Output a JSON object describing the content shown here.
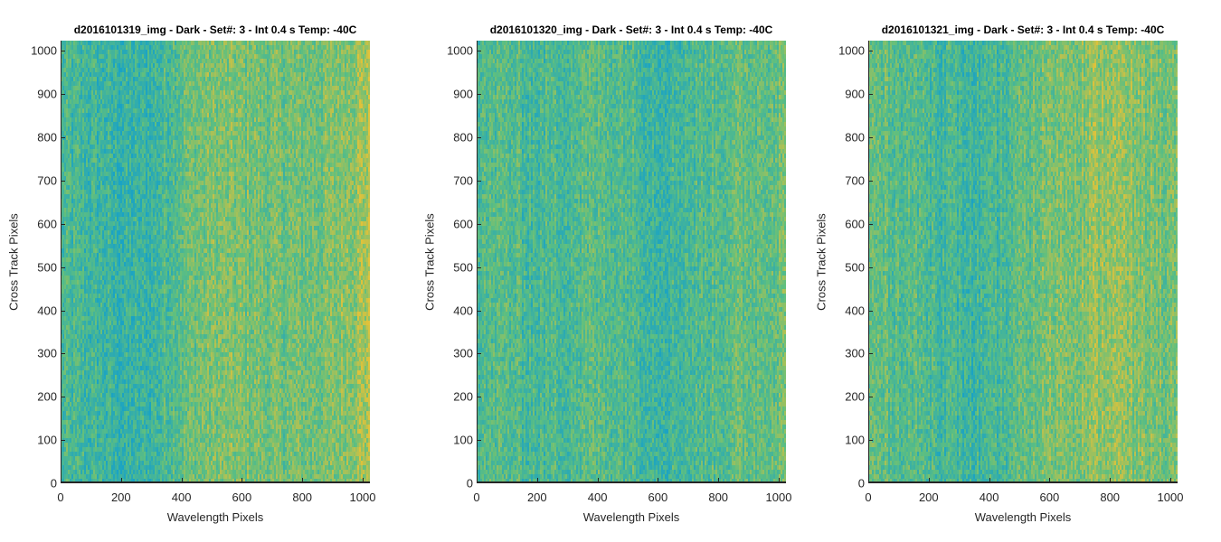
{
  "colors": {
    "low": "#1aa3c4",
    "mid": "#5fbf7f",
    "high": "#e0c23a",
    "axis": "#262626"
  },
  "chart_data": [
    {
      "type": "heatmap",
      "title": "d2016101319_img - Dark - Set#: 3 - Int 0.4 s Temp: -40C",
      "xlabel": "Wavelength Pixels",
      "ylabel": "Cross Track Pixels",
      "xlim": [
        0,
        1024
      ],
      "ylim": [
        0,
        1024
      ],
      "xticks": [
        "0",
        "200",
        "400",
        "600",
        "800",
        "1000"
      ],
      "yticks": [
        "0",
        "100",
        "200",
        "300",
        "400",
        "500",
        "600",
        "700",
        "800",
        "900",
        "1000"
      ],
      "column_profile": [
        {
          "x": 0,
          "level": 0.35
        },
        {
          "x": 100,
          "level": 0.3
        },
        {
          "x": 200,
          "level": 0.22
        },
        {
          "x": 300,
          "level": 0.25
        },
        {
          "x": 400,
          "level": 0.5
        },
        {
          "x": 500,
          "level": 0.6
        },
        {
          "x": 600,
          "level": 0.6
        },
        {
          "x": 700,
          "level": 0.55
        },
        {
          "x": 800,
          "level": 0.55
        },
        {
          "x": 900,
          "level": 0.6
        },
        {
          "x": 1024,
          "level": 0.8
        }
      ]
    },
    {
      "type": "heatmap",
      "title": "d2016101320_img - Dark - Set#: 3 - Int 0.4 s Temp: -40C",
      "xlabel": "Wavelength Pixels",
      "ylabel": "Cross Track Pixels",
      "xlim": [
        0,
        1024
      ],
      "ylim": [
        0,
        1024
      ],
      "xticks": [
        "0",
        "200",
        "400",
        "600",
        "800",
        "1000"
      ],
      "yticks": [
        "0",
        "100",
        "200",
        "300",
        "400",
        "500",
        "600",
        "700",
        "800",
        "900",
        "1000"
      ],
      "column_profile": [
        {
          "x": 0,
          "level": 0.4
        },
        {
          "x": 100,
          "level": 0.42
        },
        {
          "x": 200,
          "level": 0.35
        },
        {
          "x": 300,
          "level": 0.4
        },
        {
          "x": 400,
          "level": 0.45
        },
        {
          "x": 500,
          "level": 0.42
        },
        {
          "x": 600,
          "level": 0.3
        },
        {
          "x": 700,
          "level": 0.35
        },
        {
          "x": 800,
          "level": 0.45
        },
        {
          "x": 900,
          "level": 0.5
        },
        {
          "x": 1024,
          "level": 0.55
        }
      ]
    },
    {
      "type": "heatmap",
      "title": "d2016101321_img - Dark - Set#: 3 - Int 0.4 s Temp: -40C",
      "xlabel": "Wavelength Pixels",
      "ylabel": "Cross Track Pixels",
      "xlim": [
        0,
        1024
      ],
      "ylim": [
        0,
        1024
      ],
      "xticks": [
        "0",
        "200",
        "400",
        "600",
        "800",
        "1000"
      ],
      "yticks": [
        "0",
        "100",
        "200",
        "300",
        "400",
        "500",
        "600",
        "700",
        "800",
        "900",
        "1000"
      ],
      "column_profile": [
        {
          "x": 0,
          "level": 0.5
        },
        {
          "x": 100,
          "level": 0.45
        },
        {
          "x": 200,
          "level": 0.4
        },
        {
          "x": 300,
          "level": 0.3
        },
        {
          "x": 400,
          "level": 0.28
        },
        {
          "x": 500,
          "level": 0.45
        },
        {
          "x": 600,
          "level": 0.6
        },
        {
          "x": 700,
          "level": 0.65
        },
        {
          "x": 800,
          "level": 0.72
        },
        {
          "x": 900,
          "level": 0.62
        },
        {
          "x": 1024,
          "level": 0.55
        }
      ]
    }
  ]
}
